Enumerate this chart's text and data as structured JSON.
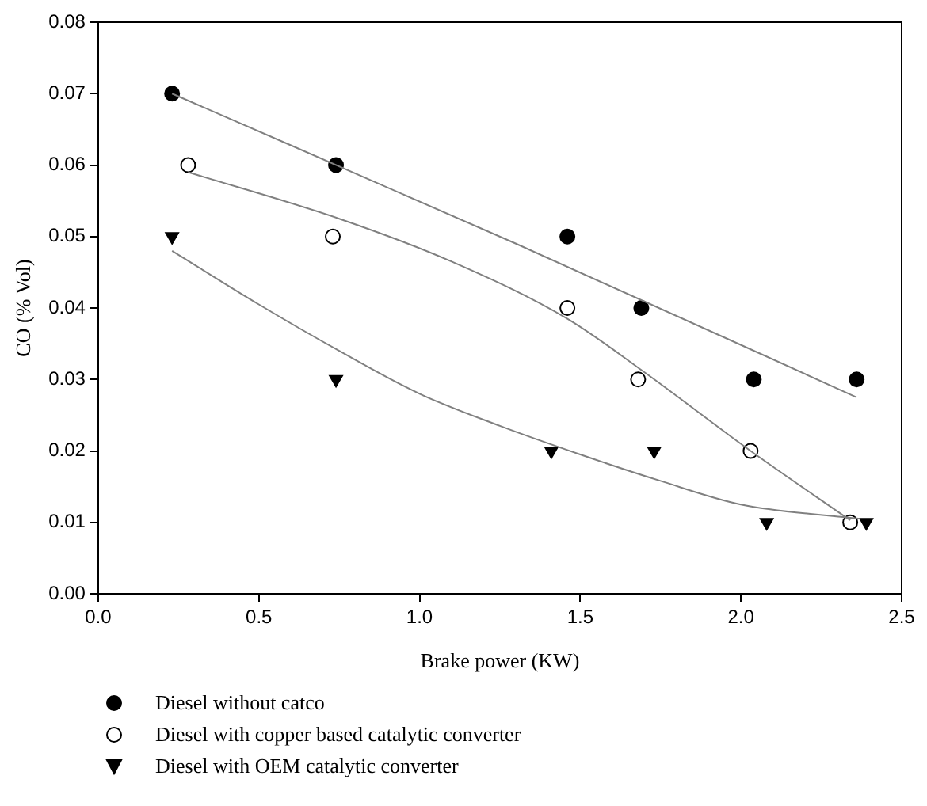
{
  "chart_data": {
    "type": "scatter",
    "xlabel": "Brake power (KW)",
    "ylabel": "CO (% Vol)",
    "xlim": [
      0,
      2.5
    ],
    "xticks": [
      {
        "value": 0,
        "label": "0.0"
      },
      {
        "value": 0.5,
        "label": "0.5"
      },
      {
        "value": 1,
        "label": "1.0"
      },
      {
        "value": 1.5,
        "label": "1.5"
      },
      {
        "value": 2,
        "label": "2.0"
      },
      {
        "value": 2.5,
        "label": "2.5"
      }
    ],
    "ylim": [
      0,
      0.08
    ],
    "yticks": [
      {
        "value": 0,
        "label": "0.00"
      },
      {
        "value": 0.01,
        "label": "0.01"
      },
      {
        "value": 0.02,
        "label": "0.02"
      },
      {
        "value": 0.03,
        "label": "0.03"
      },
      {
        "value": 0.04,
        "label": "0.04"
      },
      {
        "value": 0.05,
        "label": "0.05"
      },
      {
        "value": 0.06,
        "label": "0.06"
      },
      {
        "value": 0.07,
        "label": "0.07"
      },
      {
        "value": 0.08,
        "label": "0.08"
      }
    ],
    "grid": false,
    "legend": "bottom",
    "series": [
      {
        "name": "Diesel without catco",
        "type": "scatter",
        "marker": "circle",
        "color": "#000000",
        "x": [
          0.23,
          0.74,
          1.46,
          1.69,
          2.04,
          2.36
        ],
        "values": [
          0.07,
          0.06,
          0.05,
          0.04,
          0.03,
          0.03
        ]
      },
      {
        "name": "Diesel with copper based catalytic converter",
        "type": "scatter",
        "marker": "circle",
        "color": "#ffffff",
        "x": [
          0.28,
          0.73,
          1.46,
          1.68,
          2.03,
          2.34
        ],
        "values": [
          0.06,
          0.05,
          0.04,
          0.03,
          0.02,
          0.01
        ]
      },
      {
        "name": "Diesel with OEM catalytic converter",
        "type": "scatter",
        "marker": "triangle",
        "color": "#000000",
        "x": [
          0.23,
          0.74,
          1.41,
          1.73,
          2.08,
          2.39
        ],
        "values": [
          0.05,
          0.03,
          0.02,
          0.02,
          0.01,
          0.01
        ]
      },
      {
        "type": "line",
        "marker": "none",
        "color": "#808080",
        "x": [
          0.23,
          1.3,
          2.36
        ],
        "values": [
          0.07,
          0.049,
          0.0275
        ]
      },
      {
        "type": "line",
        "marker": "none",
        "color": "#808080",
        "x": [
          0.28,
          0.75,
          1.1,
          1.46,
          1.7,
          2.03,
          2.34
        ],
        "values": [
          0.059,
          0.0525,
          0.0465,
          0.0385,
          0.031,
          0.02,
          0.0103
        ]
      },
      {
        "type": "line",
        "marker": "none",
        "color": "#808080",
        "x": [
          0.23,
          0.5,
          0.75,
          1.0,
          1.25,
          1.5,
          1.75,
          2.0,
          2.37
        ],
        "values": [
          0.048,
          0.0405,
          0.034,
          0.028,
          0.0235,
          0.0195,
          0.0158,
          0.0125,
          0.0105
        ]
      }
    ]
  }
}
